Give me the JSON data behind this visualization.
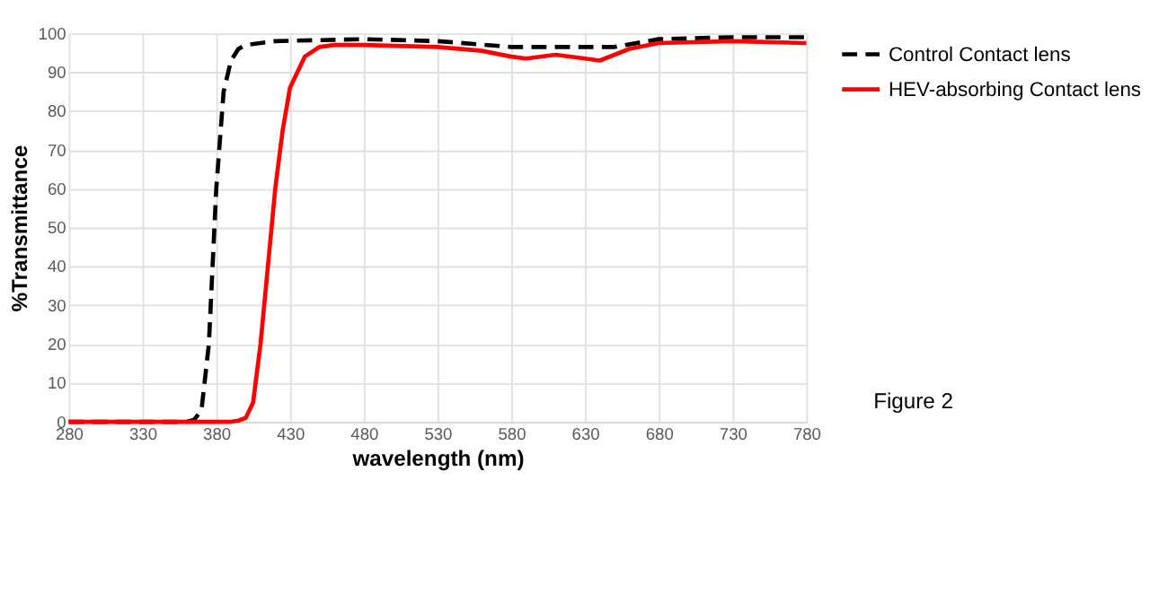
{
  "chart_data": {
    "type": "line",
    "xlabel": "wavelength (nm)",
    "ylabel": "%Transmittance",
    "xlim": [
      280,
      780
    ],
    "xticks": [
      280,
      330,
      380,
      430,
      480,
      530,
      580,
      630,
      680,
      730,
      780
    ],
    "ylim": [
      0,
      100
    ],
    "yticks": [
      0,
      10,
      20,
      30,
      40,
      50,
      60,
      70,
      80,
      90,
      100
    ],
    "grid": true,
    "legend": "right",
    "marker": "none",
    "annotations": [
      "Figure 2"
    ],
    "series": [
      {
        "name": "Control Contact lens",
        "color": "#000000",
        "line_style": "dashed",
        "x": [
          280,
          330,
          360,
          365,
          370,
          375,
          380,
          385,
          390,
          395,
          400,
          420,
          480,
          530,
          580,
          630,
          650,
          680,
          730,
          780
        ],
        "values": [
          0,
          0,
          0,
          0.5,
          3,
          20,
          60,
          85,
          93,
          96,
          97,
          98,
          98.5,
          98,
          96.5,
          96.5,
          96.5,
          98.5,
          99,
          99
        ]
      },
      {
        "name": "HEV-absorbing Contact lens",
        "color": "#ff0000",
        "line_style": "solid",
        "x": [
          280,
          330,
          390,
          395,
          400,
          405,
          410,
          415,
          420,
          425,
          430,
          440,
          450,
          460,
          480,
          530,
          560,
          580,
          590,
          610,
          630,
          640,
          660,
          680,
          730,
          780
        ],
        "values": [
          0,
          0,
          0,
          0.3,
          1,
          5,
          20,
          40,
          60,
          75,
          86,
          94,
          96.5,
          97,
          97,
          96.5,
          95.5,
          94,
          93.5,
          94.5,
          93.5,
          93,
          96,
          97.5,
          98,
          97.5
        ]
      }
    ]
  }
}
